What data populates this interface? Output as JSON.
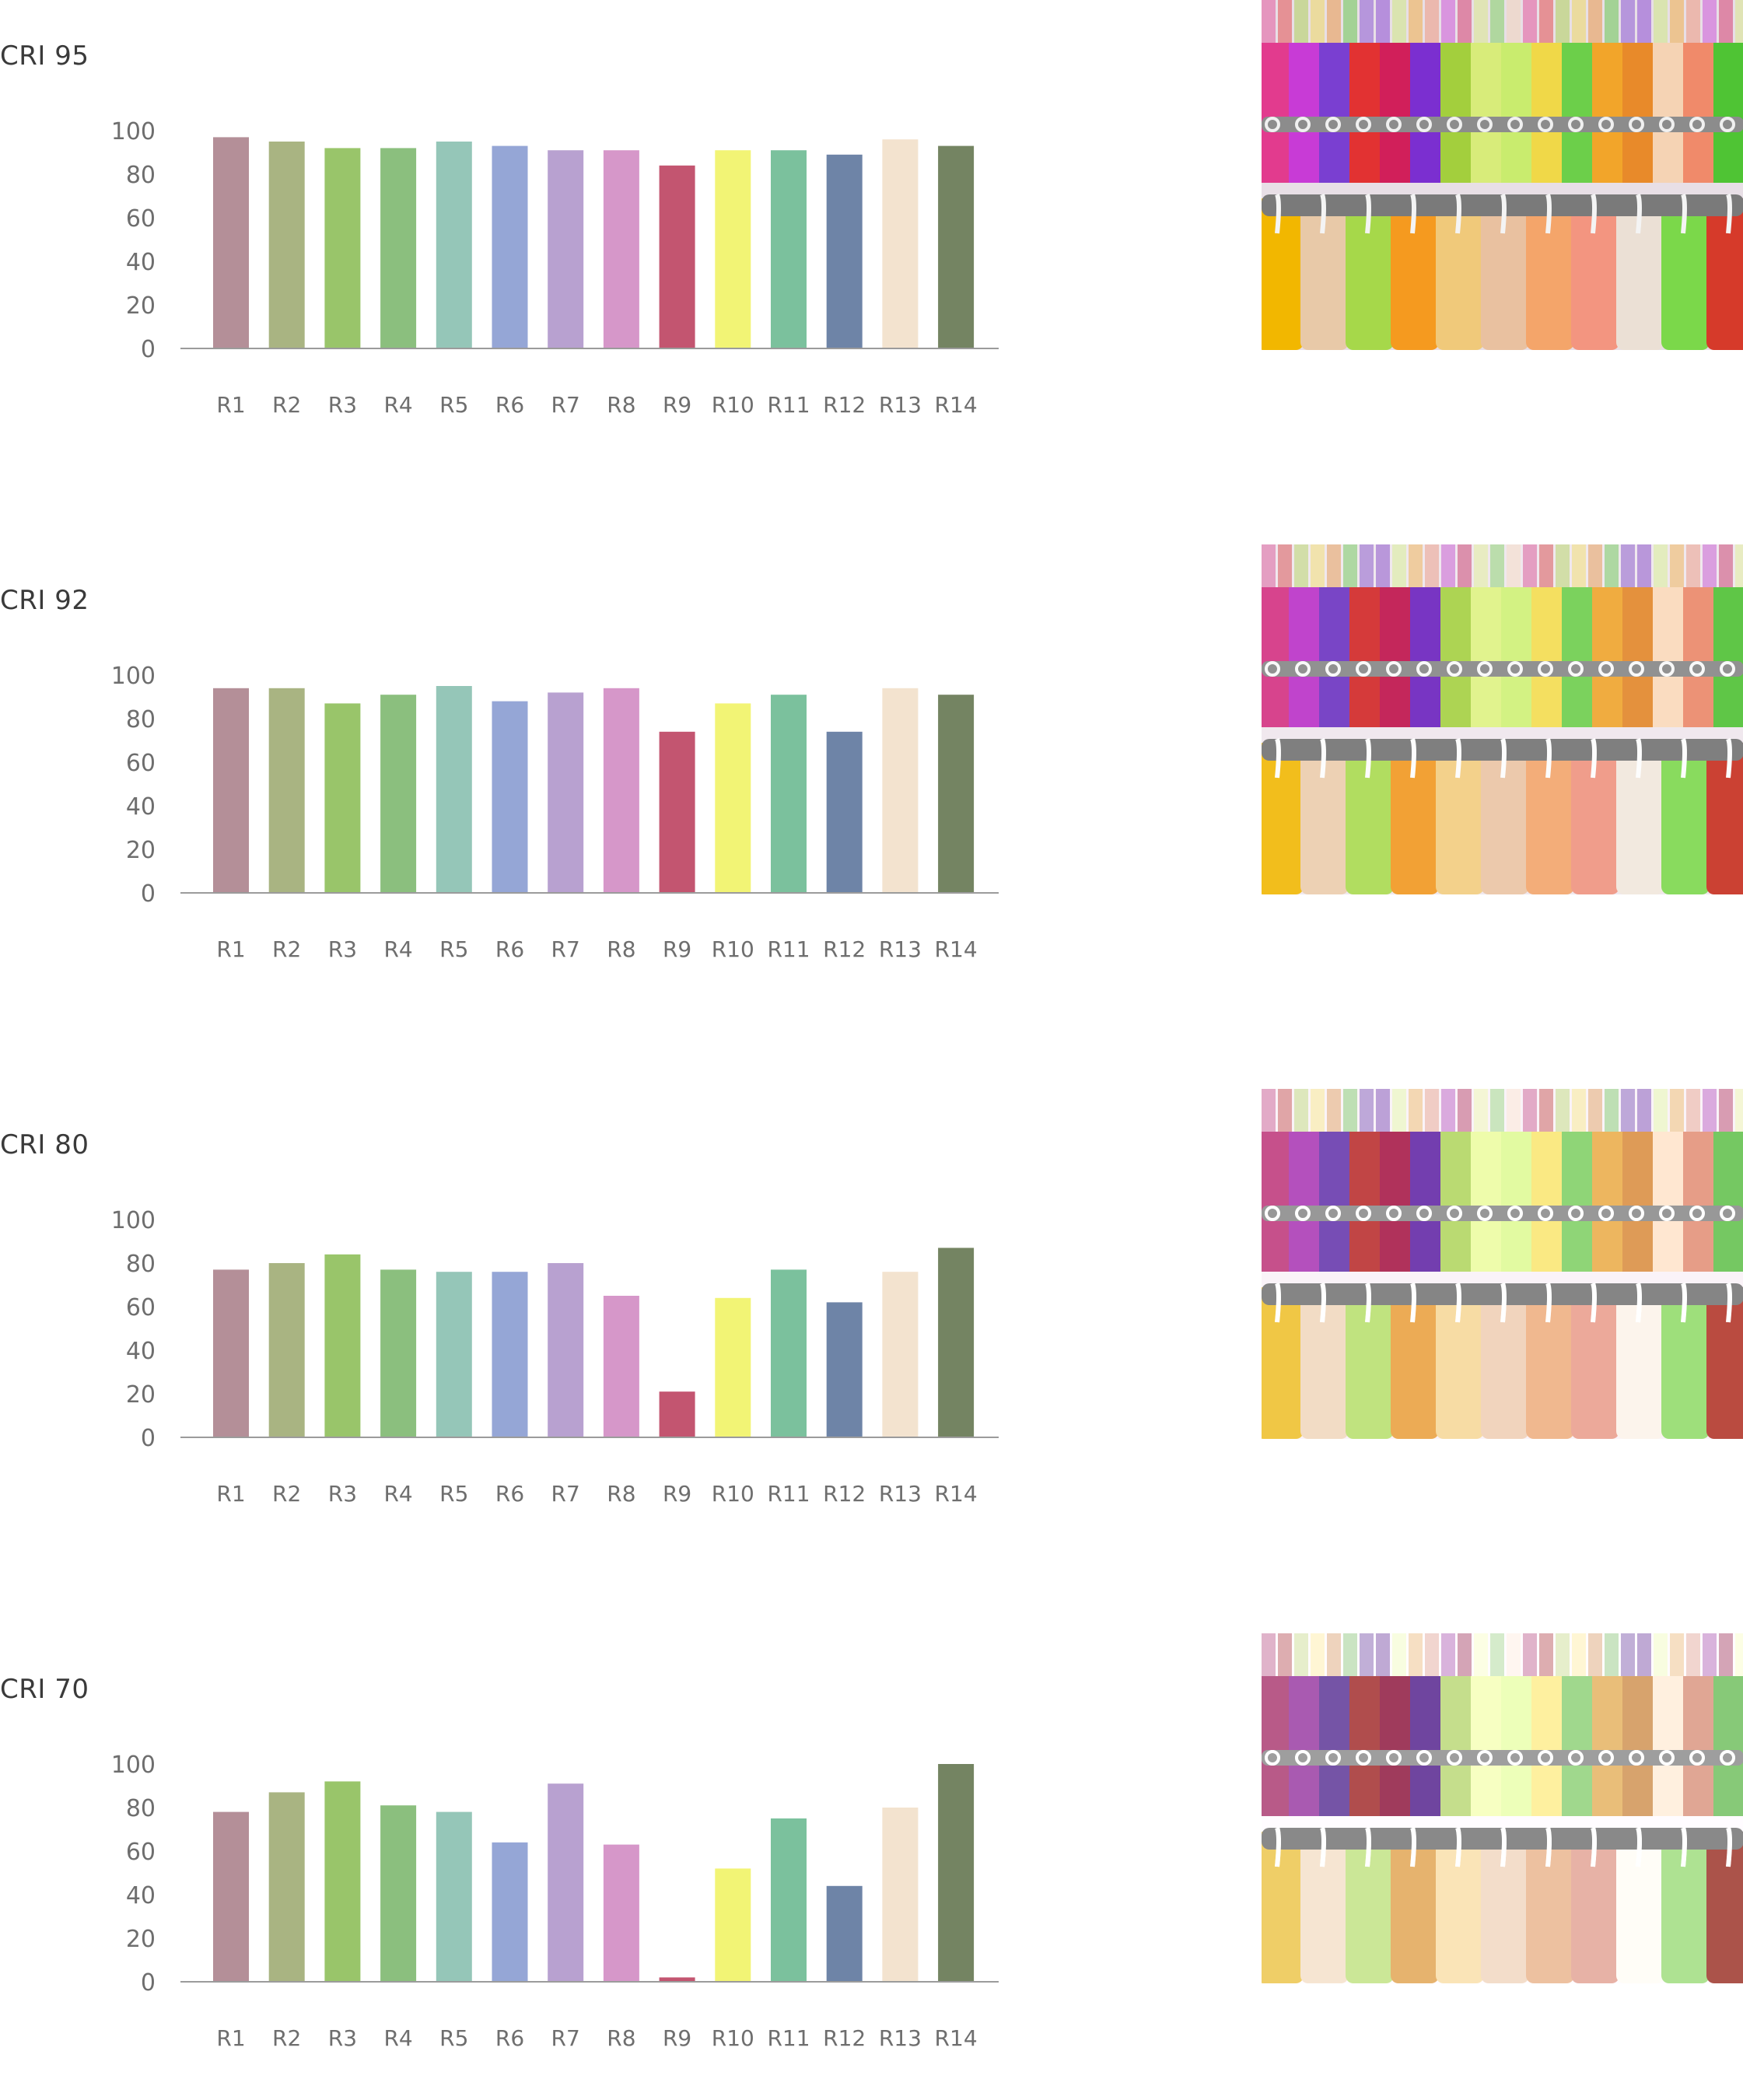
{
  "chart_data": [
    {
      "type": "bar",
      "title": "CRI 95",
      "categories": [
        "R1",
        "R2",
        "R3",
        "R4",
        "R5",
        "R6",
        "R7",
        "R8",
        "R9",
        "R10",
        "R11",
        "R12",
        "R13",
        "R14"
      ],
      "values": [
        97,
        95,
        92,
        92,
        95,
        93,
        91,
        91,
        84,
        91,
        91,
        89,
        96,
        93
      ],
      "yticks": [
        "0",
        "20",
        "40",
        "60",
        "80",
        "100"
      ],
      "ylim": [
        0,
        100
      ],
      "grid": false
    },
    {
      "type": "bar",
      "title": "CRI 92",
      "categories": [
        "R1",
        "R2",
        "R3",
        "R4",
        "R5",
        "R6",
        "R7",
        "R8",
        "R9",
        "R10",
        "R11",
        "R12",
        "R13",
        "R14"
      ],
      "values": [
        94,
        94,
        87,
        91,
        95,
        88,
        92,
        94,
        74,
        87,
        91,
        74,
        94,
        91
      ],
      "yticks": [
        "0",
        "20",
        "40",
        "60",
        "80",
        "100"
      ],
      "ylim": [
        0,
        100
      ],
      "grid": false
    },
    {
      "type": "bar",
      "title": "CRI 80",
      "categories": [
        "R1",
        "R2",
        "R3",
        "R4",
        "R5",
        "R6",
        "R7",
        "R8",
        "R9",
        "R10",
        "R11",
        "R12",
        "R13",
        "R14"
      ],
      "values": [
        77,
        80,
        84,
        77,
        76,
        76,
        80,
        65,
        21,
        64,
        77,
        62,
        76,
        87
      ],
      "yticks": [
        "0",
        "20",
        "40",
        "60",
        "80",
        "100"
      ],
      "ylim": [
        0,
        100
      ],
      "grid": false
    },
    {
      "type": "bar",
      "title": "CRI 70",
      "categories": [
        "R1",
        "R2",
        "R3",
        "R4",
        "R5",
        "R6",
        "R7",
        "R8",
        "R9",
        "R10",
        "R11",
        "R12",
        "R13",
        "R14"
      ],
      "values": [
        78,
        87,
        92,
        81,
        78,
        64,
        91,
        63,
        2,
        52,
        75,
        44,
        80,
        100
      ],
      "yticks": [
        "0",
        "20",
        "40",
        "60",
        "80",
        "100"
      ],
      "ylim": [
        0,
        100
      ],
      "grid": false
    }
  ],
  "colors": {
    "bars": [
      "#b48f98",
      "#a9b482",
      "#99c56a",
      "#8bbf7e",
      "#95c6b8",
      "#95a6d6",
      "#b8a1d0",
      "#d697c9",
      "#c35570",
      "#f2f475",
      "#7bc19d",
      "#6e84a7",
      "#f3e3cf",
      "#748462"
    ],
    "axis": "#9b9b9b",
    "tick_text": "#6e6e6e",
    "title_text": "#3a3a3a"
  },
  "photos": [
    {
      "description_icon": "clothing-rack-photo",
      "saturation": 1.0
    },
    {
      "description_icon": "clothing-rack-photo",
      "saturation": 0.85
    },
    {
      "description_icon": "clothing-rack-photo",
      "saturation": 0.65
    },
    {
      "description_icon": "clothing-rack-photo",
      "saturation": 0.5
    }
  ]
}
